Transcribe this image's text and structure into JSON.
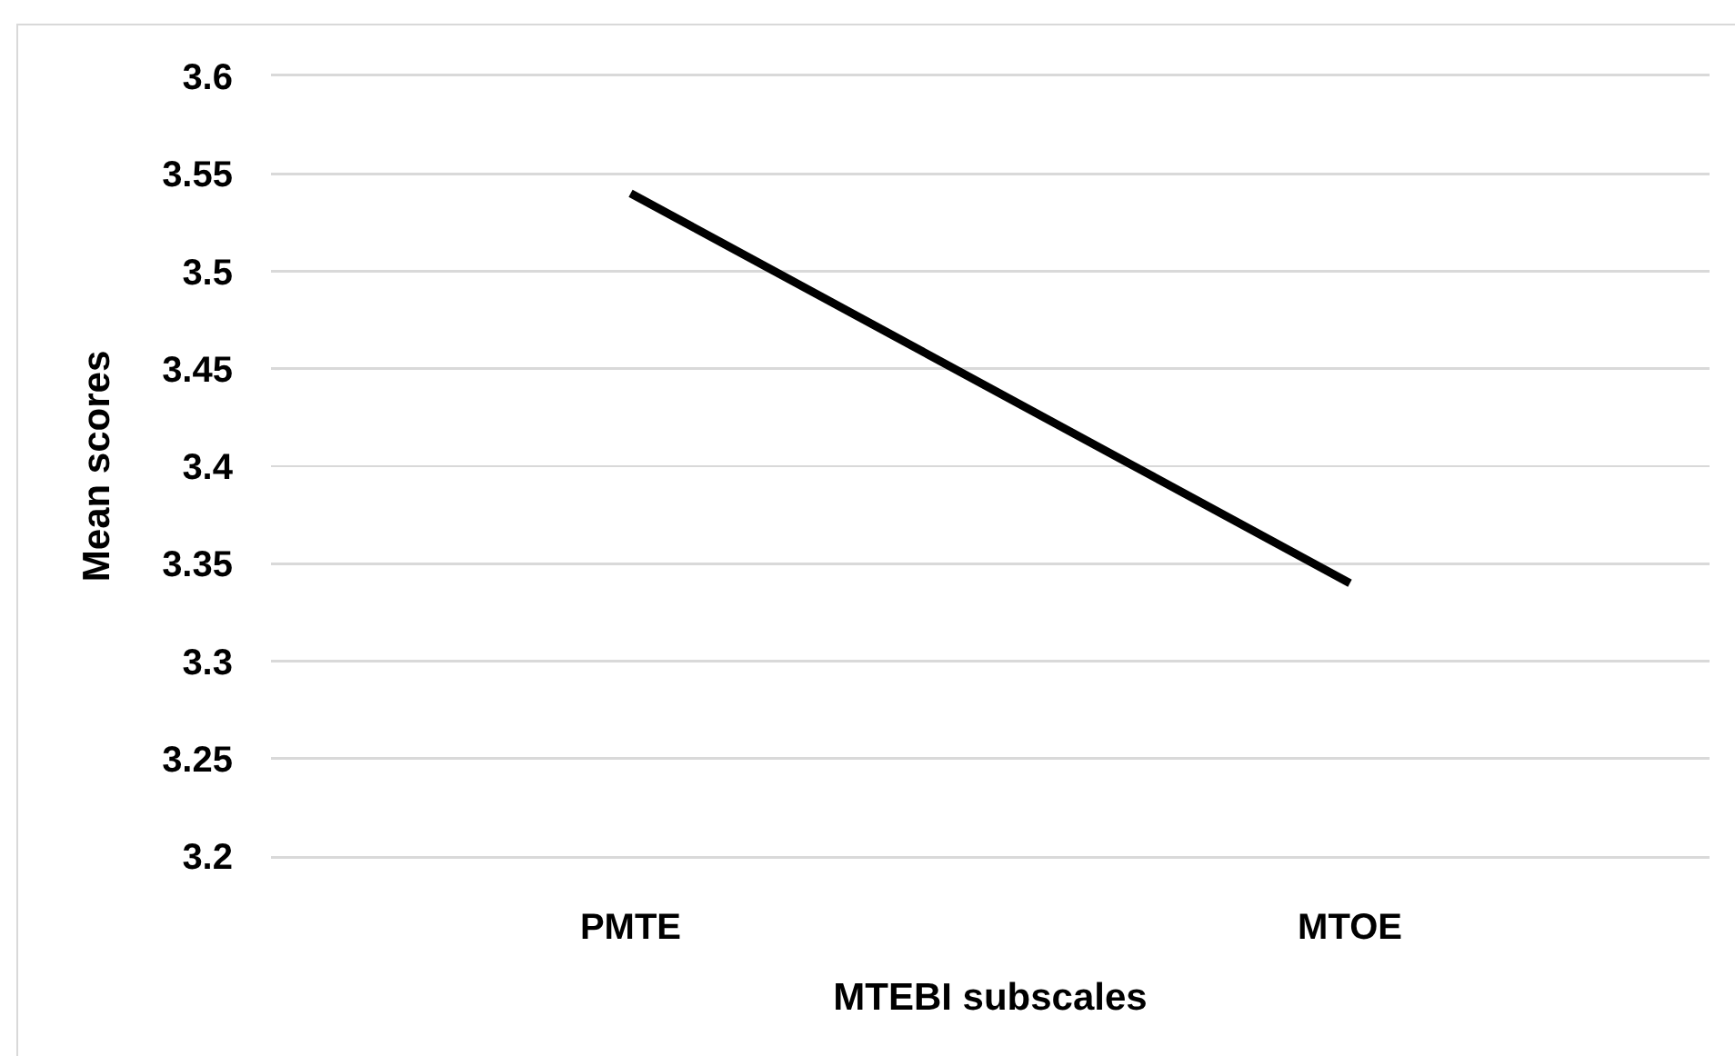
{
  "chart_data": {
    "type": "line",
    "xlabel": "MTEBI subscales",
    "ylabel": "Mean scores",
    "categories": [
      "PMTE",
      "MTOE"
    ],
    "series": [
      {
        "color": "#000000",
        "values": [
          3.54,
          3.34
        ]
      }
    ],
    "ylim": [
      3.2,
      3.6
    ],
    "yticks": [
      3.2,
      3.25,
      3.3,
      3.35,
      3.4,
      3.45,
      3.5,
      3.55,
      3.6
    ],
    "grid": "y",
    "marker": "none",
    "line_style": "solid"
  }
}
